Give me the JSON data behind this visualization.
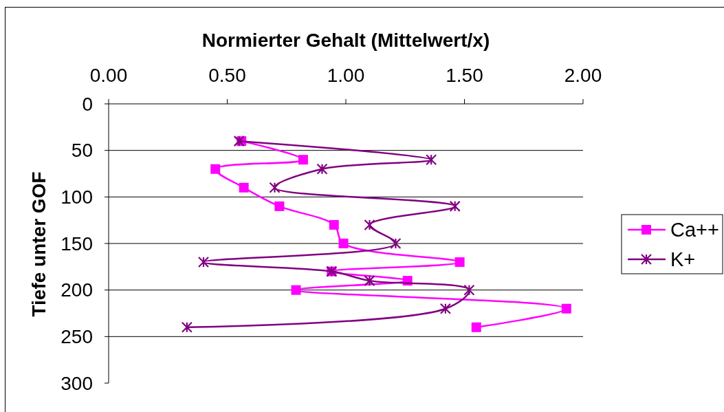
{
  "chart_data": {
    "type": "line",
    "xlabel": "Normierter Gehalt (Mittelwert/x)",
    "ylabel": "Tiefe unter GOF",
    "series": [
      {
        "name": "Ca++",
        "color": "#ff00ff",
        "marker": "square",
        "x": [
          0.56,
          0.82,
          0.45,
          0.57,
          0.72,
          0.95,
          0.99,
          1.48,
          0.94,
          1.26,
          0.79,
          1.93,
          1.55
        ],
        "values": [
          40,
          60,
          70,
          90,
          110,
          130,
          150,
          170,
          180,
          190,
          200,
          220,
          240
        ]
      },
      {
        "name": "K+",
        "color": "#800080",
        "marker": "cross",
        "x": [
          0.55,
          1.36,
          0.9,
          0.7,
          1.46,
          1.1,
          1.21,
          0.4,
          0.94,
          1.1,
          1.52,
          1.42,
          0.33
        ],
        "values": [
          40,
          60,
          70,
          90,
          110,
          130,
          150,
          170,
          180,
          190,
          200,
          220,
          240
        ]
      }
    ],
    "xlim": [
      0,
      2
    ],
    "xticks": [
      {
        "value": 0,
        "label": "0.00"
      },
      {
        "value": 0.5,
        "label": "0.50"
      },
      {
        "value": 1,
        "label": "1.00"
      },
      {
        "value": 1.5,
        "label": "1.50"
      },
      {
        "value": 2,
        "label": "2.00"
      }
    ],
    "ylim": [
      300,
      0
    ],
    "yticks": [
      0,
      50,
      100,
      150,
      200,
      250,
      300
    ],
    "grid": "y",
    "legend": "right"
  }
}
